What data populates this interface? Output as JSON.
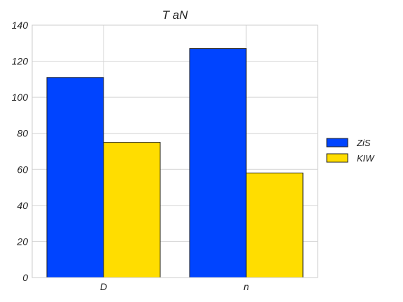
{
  "chart_data": {
    "type": "bar",
    "title": "T aN",
    "xlabel": "",
    "ylabel": "",
    "categories": [
      "D",
      "n"
    ],
    "series": [
      {
        "name": "ZiS",
        "values": [
          111,
          127
        ],
        "color": "#0044ff"
      },
      {
        "name": "KIW",
        "values": [
          75,
          58
        ],
        "color": "#ffdd00"
      }
    ],
    "ylim": [
      0,
      140
    ],
    "yticks": [
      "0",
      "20",
      "40",
      "60",
      "80",
      "100",
      "120",
      "140"
    ],
    "grid": true,
    "legend_position": "right"
  }
}
